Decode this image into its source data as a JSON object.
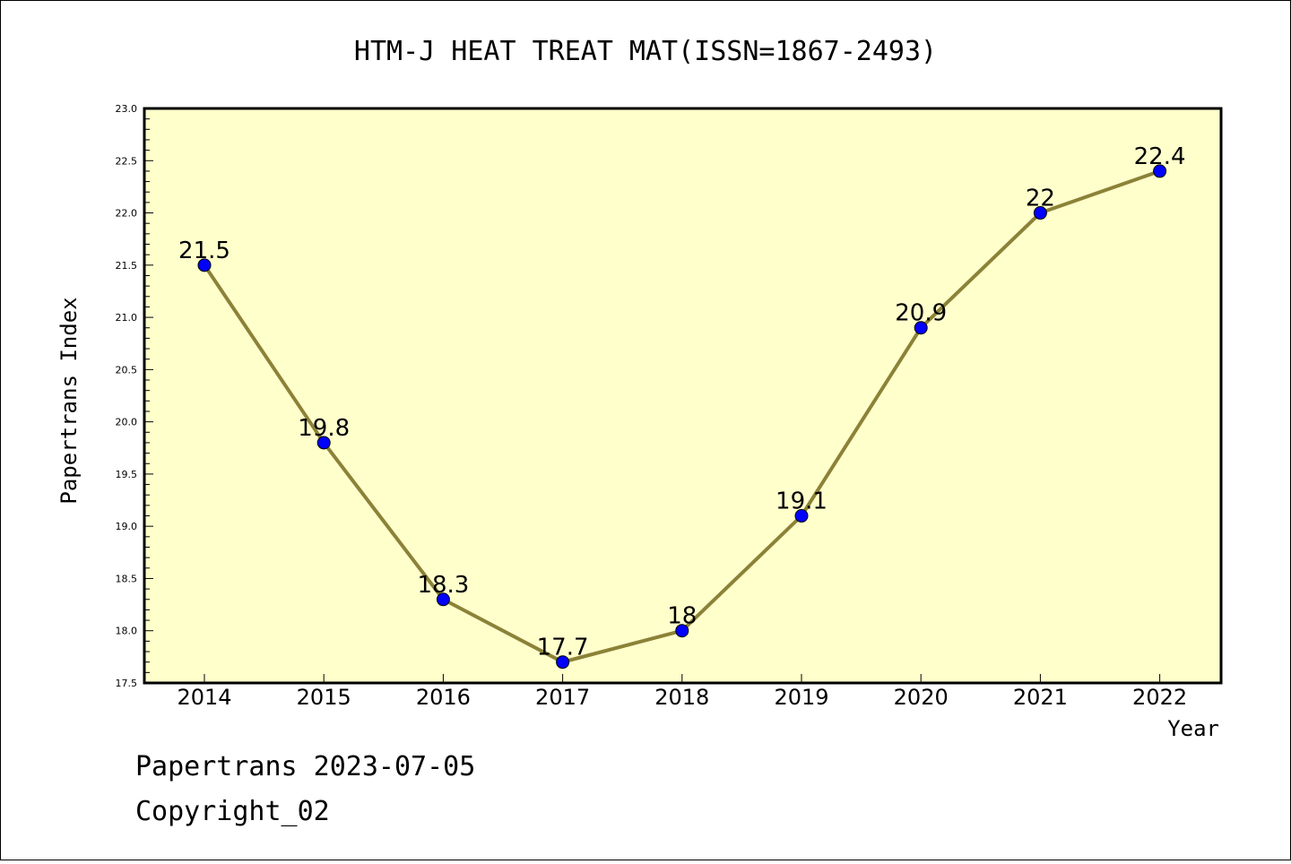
{
  "chart_data": {
    "type": "line",
    "title": "HTM-J HEAT TREAT MAT(ISSN=1867-2493)",
    "xlabel": "Year",
    "ylabel": "Papertrans Index",
    "x": [
      "2014",
      "2015",
      "2016",
      "2017",
      "2018",
      "2019",
      "2020",
      "2021",
      "2022"
    ],
    "values": [
      21.5,
      19.8,
      18.3,
      17.7,
      18.0,
      19.1,
      20.9,
      22.0,
      22.4
    ],
    "data_labels": [
      "21.5",
      "19.8",
      "18.3",
      "17.7",
      "18",
      "19.1",
      "20.9",
      "22",
      "22.4"
    ],
    "ylim": [
      17.5,
      23.0
    ],
    "yticks": [
      "17.5",
      "18.0",
      "18.5",
      "19.0",
      "19.5",
      "20.0",
      "20.5",
      "21.0",
      "21.5",
      "22.0",
      "22.5",
      "23.0"
    ],
    "grid": false,
    "colors": {
      "plot_background": "#ffffcc",
      "line": "#8b8238",
      "marker": "#0000ff"
    }
  },
  "footer": {
    "line1": "Papertrans 2023-07-05",
    "line2": "Copyright_02"
  }
}
